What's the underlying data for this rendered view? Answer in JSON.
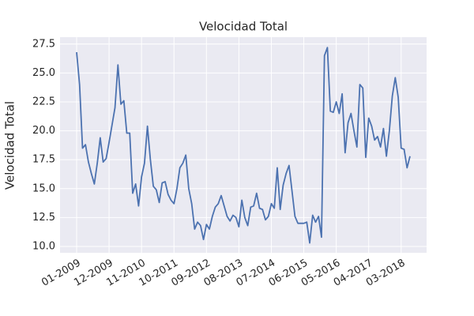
{
  "chart_data": {
    "type": "line",
    "title": "Velocidad Total",
    "y_label": "Velocidad Total",
    "color": "#4c72b0",
    "grid": true,
    "x": [
      "01-2009",
      "02-2009",
      "03-2009",
      "04-2009",
      "05-2009",
      "06-2009",
      "07-2009",
      "08-2009",
      "09-2009",
      "10-2009",
      "11-2009",
      "12-2009",
      "01-2010",
      "02-2010",
      "03-2010",
      "04-2010",
      "05-2010",
      "06-2010",
      "07-2010",
      "08-2010",
      "09-2010",
      "10-2010",
      "11-2010",
      "12-2010",
      "01-2011",
      "02-2011",
      "03-2011",
      "04-2011",
      "05-2011",
      "06-2011",
      "07-2011",
      "08-2011",
      "09-2011",
      "10-2011",
      "11-2011",
      "12-2011",
      "01-2012",
      "02-2012",
      "03-2012",
      "04-2012",
      "05-2012",
      "06-2012",
      "07-2012",
      "08-2012",
      "09-2012",
      "10-2012",
      "11-2012",
      "12-2012",
      "01-2013",
      "02-2013",
      "03-2013",
      "04-2013",
      "05-2013",
      "06-2013",
      "07-2013",
      "08-2013",
      "09-2013",
      "10-2013",
      "11-2013",
      "12-2013",
      "01-2014",
      "02-2014",
      "03-2014",
      "04-2014",
      "05-2014",
      "06-2014",
      "07-2014",
      "08-2014",
      "09-2014",
      "10-2014",
      "11-2014",
      "12-2014",
      "01-2015",
      "02-2015",
      "03-2015",
      "04-2015",
      "05-2015",
      "06-2015",
      "07-2015",
      "08-2015",
      "09-2015",
      "10-2015",
      "11-2015",
      "12-2015",
      "01-2016",
      "02-2016",
      "03-2016",
      "04-2016",
      "05-2016",
      "06-2016",
      "07-2016",
      "08-2016",
      "09-2016",
      "10-2016",
      "11-2016",
      "12-2016",
      "01-2017",
      "02-2017",
      "03-2017",
      "04-2017",
      "05-2017",
      "06-2017",
      "07-2017",
      "08-2017",
      "09-2017",
      "10-2017",
      "11-2017",
      "12-2017",
      "01-2018",
      "02-2018",
      "03-2018",
      "04-2018",
      "05-2018",
      "06-2018"
    ],
    "values": [
      26.8,
      24.0,
      18.5,
      18.8,
      17.3,
      16.3,
      15.4,
      17.2,
      19.4,
      17.3,
      17.6,
      19.0,
      20.5,
      22.0,
      25.7,
      22.3,
      22.6,
      19.8,
      19.8,
      14.6,
      15.4,
      13.5,
      16.0,
      17.2,
      20.4,
      17.5,
      15.2,
      14.9,
      13.8,
      15.5,
      15.6,
      14.5,
      14.0,
      13.7,
      15.0,
      16.8,
      17.2,
      17.9,
      15.0,
      13.7,
      11.5,
      12.1,
      11.8,
      10.6,
      11.9,
      11.5,
      12.6,
      13.4,
      13.7,
      14.4,
      13.5,
      12.6,
      12.2,
      12.7,
      12.5,
      11.7,
      14.0,
      12.5,
      11.8,
      13.4,
      13.5,
      14.6,
      13.3,
      13.2,
      12.3,
      12.6,
      13.7,
      13.3,
      16.8,
      13.2,
      15.3,
      16.3,
      17.0,
      14.8,
      12.6,
      12.0,
      12.0,
      12.0,
      12.1,
      10.3,
      12.7,
      12.1,
      12.6,
      10.8,
      26.5,
      27.2,
      21.7,
      21.6,
      22.5,
      21.5,
      23.2,
      18.1,
      20.7,
      21.5,
      20.0,
      18.6,
      24.0,
      23.7,
      17.7,
      21.1,
      20.4,
      19.2,
      19.5,
      18.6,
      20.2,
      17.8,
      20.0,
      23.0,
      24.6,
      22.9,
      18.5,
      18.4,
      16.8,
      17.8
    ],
    "xticks": [
      "01-2009",
      "12-2009",
      "11-2010",
      "10-2011",
      "09-2012",
      "08-2013",
      "07-2014",
      "06-2015",
      "05-2016",
      "04-2017",
      "03-2018"
    ],
    "ylim": [
      9.45,
      28.1
    ],
    "yticks": [
      {
        "value": 10,
        "label": "10.0"
      },
      12.5,
      {
        "value": 15,
        "label": "15.0"
      },
      17.5,
      {
        "value": 20,
        "label": "20.0"
      },
      22.5,
      {
        "value": 25,
        "label": "25.0"
      },
      27.5
    ]
  }
}
